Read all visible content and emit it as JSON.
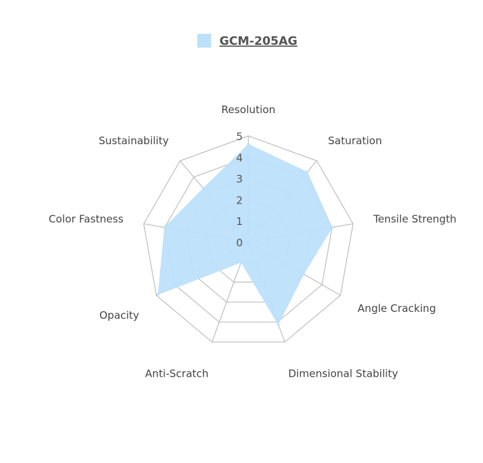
{
  "chart_data": {
    "type": "radar",
    "title": "",
    "categories": [
      "Resolution",
      "Saturation",
      "Tensile Strength",
      "Angle Cracking",
      "Dimensional Stability",
      "Anti-Scratch",
      "Opacity",
      "Color Fastness",
      "Sustainability"
    ],
    "series": [
      {
        "name": "GCM-205AG",
        "values": [
          4.6,
          4.3,
          4.0,
          3.0,
          4.1,
          1.0,
          4.9,
          4.0,
          3.3
        ]
      }
    ],
    "r_range": [
      0,
      5
    ],
    "ticks": [
      "0",
      "1",
      "2",
      "3",
      "4",
      "5"
    ],
    "legend_position": "top",
    "colors": {
      "series_fill": "#bde0fb",
      "series_stroke": "#bde0fb",
      "grid": "#bdbdbd"
    }
  }
}
